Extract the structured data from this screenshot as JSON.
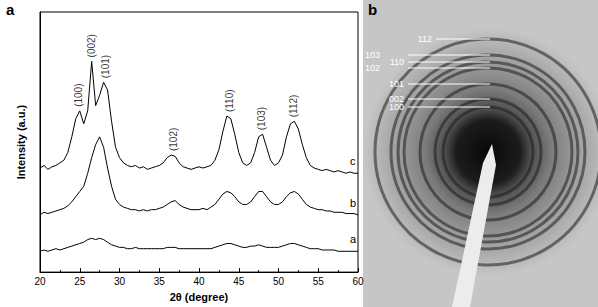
{
  "chart_data": [
    {
      "type": "line",
      "panel": "a",
      "x_label": "2θ (degree)",
      "y_label": "Intensity (a.u.)",
      "x": [
        20,
        20.5,
        21,
        21.5,
        22,
        22.5,
        23,
        23.5,
        24,
        24.5,
        25,
        25.5,
        26,
        26.5,
        27,
        27.5,
        28,
        28.5,
        29,
        29.5,
        30,
        30.5,
        31,
        31.5,
        32,
        32.5,
        33,
        33.5,
        34,
        34.5,
        35,
        35.5,
        36,
        36.5,
        37,
        37.5,
        38,
        38.5,
        39,
        39.5,
        40,
        40.5,
        41,
        41.5,
        42,
        42.5,
        43,
        43.5,
        44,
        44.5,
        45,
        45.5,
        46,
        46.5,
        47,
        47.5,
        48,
        48.5,
        49,
        49.5,
        50,
        50.5,
        51,
        51.5,
        52,
        52.5,
        53,
        53.5,
        54,
        54.5,
        55,
        55.5,
        56,
        56.5,
        57,
        57.5,
        58,
        58.5,
        59,
        59.5,
        60
      ],
      "series": [
        {
          "name": "a",
          "color": "#000000",
          "values": [
            8,
            8.5,
            8,
            8.5,
            9,
            8.5,
            9,
            9.5,
            10,
            10.5,
            11,
            11.5,
            12.5,
            13,
            12.5,
            13,
            12.5,
            11.5,
            10.5,
            10,
            9.5,
            9.5,
            9,
            9,
            9.5,
            9,
            9,
            9,
            9,
            9,
            9,
            9,
            9.5,
            9.5,
            9.5,
            9,
            9,
            9,
            9,
            9,
            9,
            9,
            9,
            9,
            9.5,
            10,
            10.5,
            11,
            11,
            10.5,
            10,
            9.5,
            9.5,
            10,
            10,
            10.5,
            10,
            9.5,
            9.5,
            9.5,
            9.5,
            10,
            10.5,
            11,
            11,
            10.5,
            10,
            9.5,
            9,
            9,
            9,
            8.5,
            8.5,
            8.5,
            8.5,
            8,
            8,
            8,
            8,
            8,
            8
          ]
        },
        {
          "name": "b",
          "color": "#000000",
          "values": [
            22,
            23,
            22.5,
            23,
            23.5,
            24,
            24.5,
            25.5,
            27,
            29,
            31,
            33,
            38,
            44,
            49,
            52,
            48,
            40,
            33,
            28,
            26,
            25,
            24.5,
            24,
            24,
            23.5,
            24,
            23.5,
            24,
            24,
            24.5,
            25,
            26,
            27,
            27.5,
            26,
            25,
            24.5,
            24,
            24,
            24,
            24.5,
            24,
            25,
            26,
            28,
            30,
            31,
            30.5,
            29,
            27,
            26,
            26,
            27,
            29,
            31,
            31,
            29,
            27,
            26,
            26,
            27,
            29,
            30.5,
            31,
            30,
            28,
            26,
            25,
            24.5,
            24,
            24,
            23.5,
            23.5,
            23,
            23,
            23,
            22.5,
            22.5,
            22.5,
            22
          ]
        },
        {
          "name": "c",
          "color": "#000000",
          "values": [
            40,
            41,
            39.5,
            40.5,
            41,
            42,
            43,
            46,
            52,
            59,
            62,
            57,
            62,
            81,
            64,
            68,
            73,
            70,
            58,
            48,
            44,
            42,
            41,
            40.5,
            41,
            40,
            40.5,
            39.5,
            40,
            40.5,
            41,
            42,
            44,
            45,
            44.5,
            42,
            40.5,
            40,
            39.5,
            40,
            40.5,
            40,
            40.5,
            41,
            43,
            47,
            54,
            60,
            59,
            53,
            46,
            42,
            41,
            42,
            46,
            52,
            53,
            48,
            43,
            41,
            42,
            45,
            52,
            57,
            58,
            55,
            49,
            44,
            41,
            40,
            39.5,
            39,
            39.5,
            39,
            38.5,
            39,
            38.5,
            38,
            38.5,
            38,
            38
          ]
        }
      ],
      "xlim": [
        20,
        60
      ],
      "xticks": [
        20,
        25,
        30,
        35,
        40,
        45,
        50,
        55,
        60
      ],
      "ylim": [
        0,
        100
      ],
      "tick_labels": "x",
      "grid": false,
      "annotations": [
        {
          "text": "(100)",
          "x": 24.9
        },
        {
          "text": "(002)",
          "x": 26.5
        },
        {
          "text": "(101)",
          "x": 28.2
        },
        {
          "text": "(102)",
          "x": 36.8
        },
        {
          "text": "(110)",
          "x": 43.8
        },
        {
          "text": "(103)",
          "x": 47.9
        },
        {
          "text": "(112)",
          "x": 51.9
        }
      ]
    },
    {
      "type": "diffraction_pattern",
      "panel": "b",
      "rings": [
        "112",
        "103",
        "110",
        "102",
        "101",
        "002",
        "100"
      ]
    }
  ]
}
